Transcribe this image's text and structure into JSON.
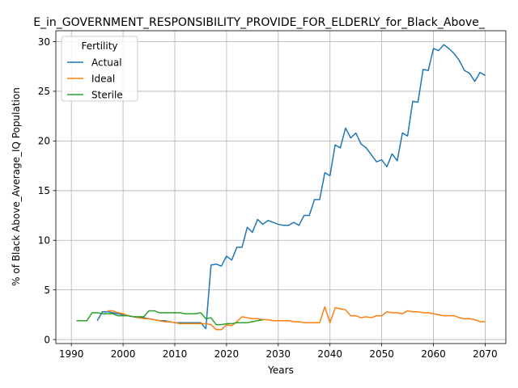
{
  "chart_data": {
    "type": "line",
    "title": "E_in_GOVERNMENT_RESPONSIBILITY_PROVIDE_FOR_ELDERLY_for_Black_Above_",
    "xlabel": "Years",
    "ylabel": "% of Black Above_Average_IQ Population",
    "xlim": [
      1987,
      2074
    ],
    "ylim": [
      -0.4,
      31.1
    ],
    "x_ticks": [
      1990,
      2000,
      2010,
      2020,
      2030,
      2040,
      2050,
      2060,
      2070
    ],
    "y_ticks": [
      0,
      5,
      10,
      15,
      20,
      25,
      30
    ],
    "grid": true,
    "legend": {
      "title": "Fertility",
      "placement": "upper-left"
    },
    "series": [
      {
        "name": "Actual",
        "color": "#1f77b4",
        "x": [
          1995,
          1996,
          1997,
          1998,
          1999,
          2000,
          2001,
          2002,
          2003,
          2004,
          2005,
          2006,
          2007,
          2008,
          2009,
          2010,
          2011,
          2012,
          2013,
          2014,
          2015,
          2016,
          2017,
          2018,
          2019,
          2020,
          2021,
          2022,
          2023,
          2024,
          2025,
          2026,
          2027,
          2028,
          2029,
          2030,
          2031,
          2032,
          2033,
          2034,
          2035,
          2036,
          2037,
          2038,
          2039,
          2040,
          2041,
          2042,
          2043,
          2044,
          2045,
          2046,
          2047,
          2048,
          2049,
          2050,
          2051,
          2052,
          2053,
          2054,
          2055,
          2056,
          2057,
          2058,
          2059,
          2060,
          2061,
          2062,
          2063,
          2064,
          2065,
          2066,
          2067,
          2068,
          2069,
          2070
        ],
        "y": [
          1.9,
          2.8,
          2.8,
          2.7,
          2.6,
          2.5,
          2.4,
          2.3,
          2.2,
          2.2,
          2.1,
          2.0,
          1.9,
          1.9,
          1.8,
          1.7,
          1.7,
          1.7,
          1.7,
          1.7,
          1.7,
          1.1,
          7.5,
          7.6,
          7.4,
          8.4,
          8.0,
          9.3,
          9.3,
          11.3,
          10.8,
          12.1,
          11.6,
          12.0,
          11.8,
          11.6,
          11.5,
          11.5,
          11.8,
          11.5,
          12.5,
          12.5,
          14.1,
          14.1,
          16.8,
          16.5,
          19.6,
          19.3,
          21.3,
          20.3,
          20.8,
          19.7,
          19.3,
          18.6,
          17.9,
          18.1,
          17.4,
          18.7,
          18.0,
          20.8,
          20.5,
          24.0,
          23.9,
          27.2,
          27.1,
          29.3,
          29.1,
          29.7,
          29.3,
          28.8,
          28.1,
          27.1,
          26.8,
          26.0,
          26.9,
          26.6
        ]
      },
      {
        "name": "Ideal",
        "color": "#ff7f0e",
        "x": [
          1997,
          1998,
          1999,
          2000,
          2001,
          2002,
          2003,
          2004,
          2005,
          2006,
          2007,
          2008,
          2009,
          2010,
          2011,
          2012,
          2013,
          2014,
          2015,
          2016,
          2017,
          2018,
          2019,
          2020,
          2021,
          2022,
          2023,
          2024,
          2025,
          2026,
          2027,
          2028,
          2029,
          2030,
          2031,
          2032,
          2033,
          2034,
          2035,
          2036,
          2037,
          2038,
          2039,
          2040,
          2041,
          2042,
          2043,
          2044,
          2045,
          2046,
          2047,
          2048,
          2049,
          2050,
          2051,
          2052,
          2053,
          2054,
          2055,
          2056,
          2057,
          2058,
          2059,
          2060,
          2061,
          2062,
          2063,
          2064,
          2065,
          2066,
          2067,
          2068,
          2069,
          2070
        ],
        "y": [
          2.9,
          2.9,
          2.7,
          2.6,
          2.4,
          2.3,
          2.2,
          2.1,
          2.1,
          2.0,
          1.9,
          1.8,
          1.8,
          1.7,
          1.6,
          1.6,
          1.6,
          1.6,
          1.6,
          1.6,
          1.5,
          1.0,
          1.0,
          1.5,
          1.4,
          1.8,
          2.3,
          2.2,
          2.1,
          2.1,
          2.0,
          2.0,
          1.9,
          1.9,
          1.9,
          1.9,
          1.8,
          1.8,
          1.7,
          1.7,
          1.7,
          1.7,
          3.3,
          1.7,
          3.2,
          3.1,
          3.0,
          2.4,
          2.4,
          2.2,
          2.3,
          2.2,
          2.4,
          2.4,
          2.8,
          2.7,
          2.7,
          2.6,
          2.9,
          2.8,
          2.8,
          2.7,
          2.7,
          2.6,
          2.5,
          2.4,
          2.4,
          2.4,
          2.2,
          2.1,
          2.1,
          2.0,
          1.8,
          1.8
        ]
      },
      {
        "name": "Sterile",
        "color": "#2ca02c",
        "x": [
          1991,
          1992,
          1993,
          1994,
          1995,
          1996,
          1997,
          1998,
          1999,
          2000,
          2001,
          2002,
          2003,
          2004,
          2005,
          2006,
          2007,
          2008,
          2009,
          2010,
          2011,
          2012,
          2013,
          2014,
          2015,
          2016,
          2017,
          2018,
          2019,
          2020,
          2021,
          2022,
          2023,
          2024,
          2025,
          2026,
          2027
        ],
        "y": [
          1.9,
          1.9,
          1.9,
          2.7,
          2.7,
          2.6,
          2.6,
          2.6,
          2.4,
          2.4,
          2.4,
          2.3,
          2.3,
          2.3,
          2.9,
          2.9,
          2.7,
          2.7,
          2.7,
          2.7,
          2.7,
          2.6,
          2.6,
          2.6,
          2.7,
          2.1,
          2.2,
          1.5,
          1.5,
          1.6,
          1.6,
          1.7,
          1.7,
          1.7,
          1.8,
          1.9,
          2.0
        ]
      }
    ]
  }
}
